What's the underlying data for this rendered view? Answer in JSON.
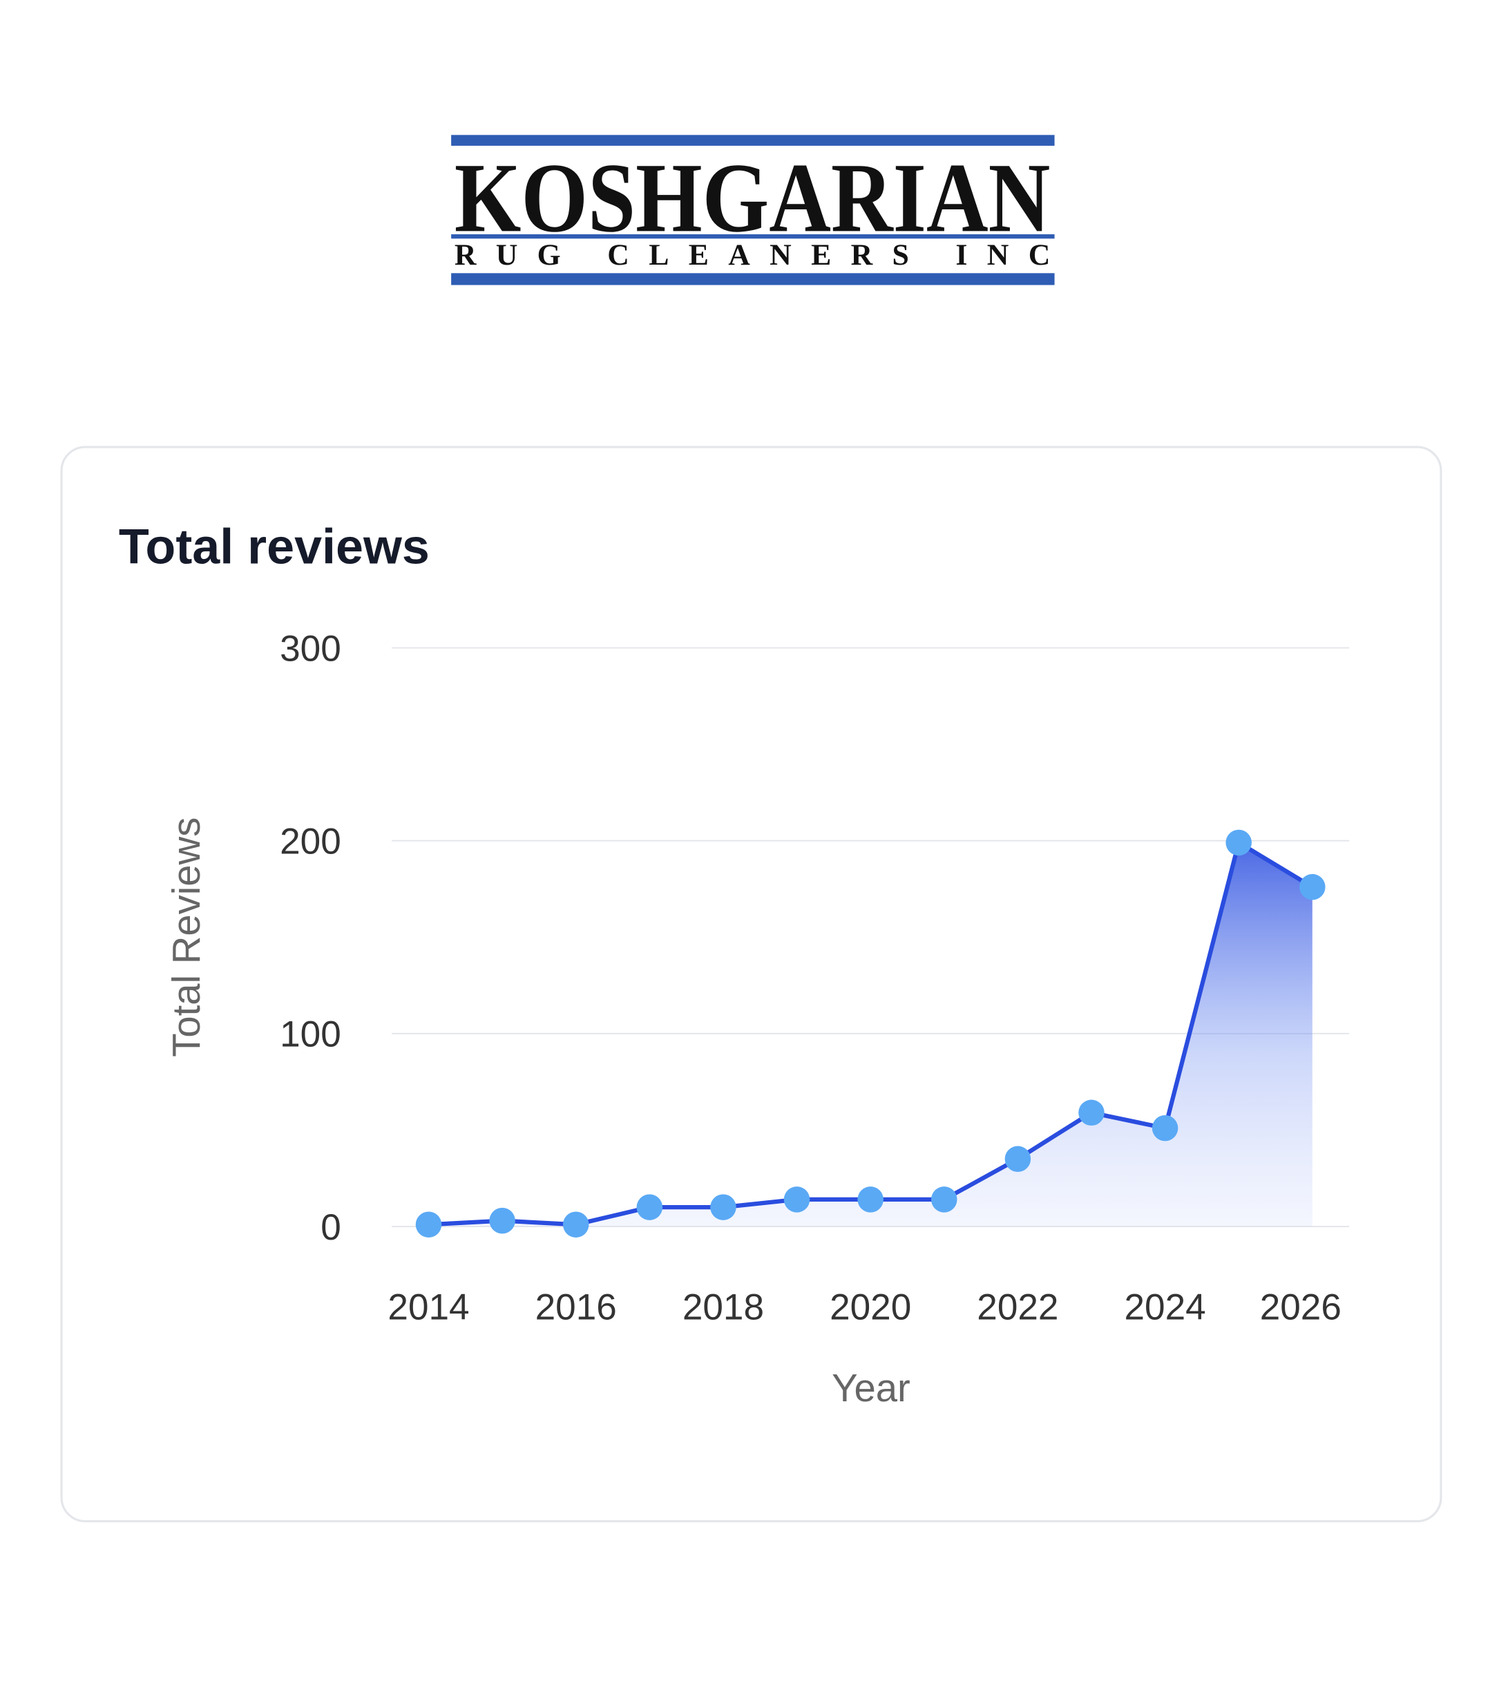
{
  "logo": {
    "name": "KOSHGARIAN",
    "tagline": "RUG CLEANERS INC"
  },
  "chart_data": {
    "type": "line",
    "title": "Total reviews",
    "x_label": "Year",
    "y_label": "Total Reviews",
    "x": [
      2014,
      2015,
      2016,
      2017,
      2018,
      2019,
      2020,
      2021,
      2022,
      2023,
      2024,
      2025,
      2026
    ],
    "values": [
      1,
      3,
      1,
      10,
      10,
      14,
      14,
      14,
      35,
      59,
      51,
      199,
      176
    ],
    "color": "#2a4ddf",
    "marker_color": "#5aa9f5",
    "xlim": [
      2013.5,
      2026.5
    ],
    "xticks": [
      2014,
      2016,
      2018,
      2020,
      2022,
      2024,
      2026
    ],
    "ylim": [
      0,
      300
    ],
    "yticks": [
      0,
      100,
      200,
      300
    ],
    "grid": true
  }
}
